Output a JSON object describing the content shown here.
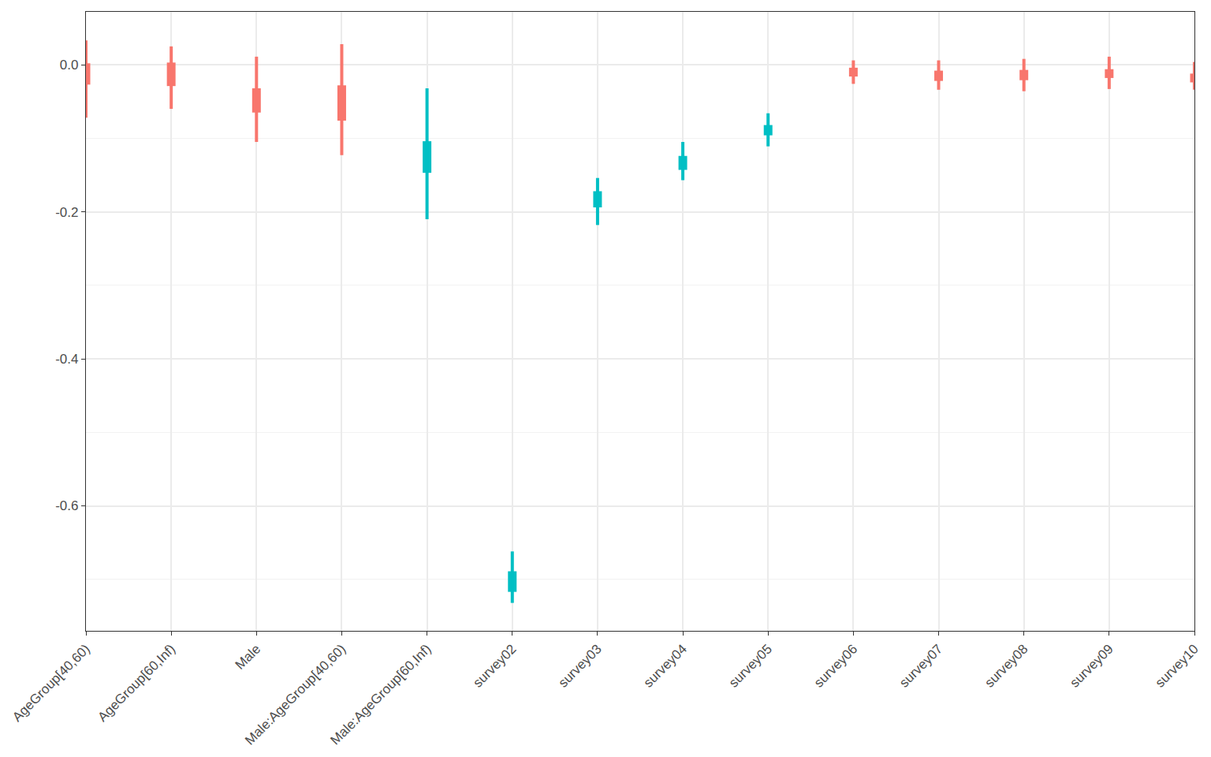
{
  "chart_data": {
    "type": "interval",
    "categories": [
      "AgeGroup[40,60)",
      "AgeGroup[60,Inf)",
      "Male",
      "Male:AgeGroup[40,60)",
      "Male:AgeGroup[60,Inf)",
      "survey02",
      "survey03",
      "survey04",
      "survey05",
      "survey06",
      "survey07",
      "survey08",
      "survey09",
      "survey10"
    ],
    "lower": [
      -0.072,
      -0.06,
      -0.105,
      -0.123,
      -0.21,
      -0.732,
      -0.218,
      -0.157,
      -0.111,
      -0.026,
      -0.034,
      -0.036,
      -0.033,
      -0.034
    ],
    "upper": [
      0.033,
      0.025,
      0.011,
      0.028,
      -0.032,
      -0.662,
      -0.154,
      -0.105,
      -0.066,
      0.006,
      0.006,
      0.008,
      0.011,
      0.004
    ],
    "inner_lower": [
      -0.027,
      -0.029,
      -0.065,
      -0.076,
      -0.147,
      -0.717,
      -0.194,
      -0.143,
      -0.096,
      -0.016,
      -0.022,
      -0.021,
      -0.018,
      -0.024
    ],
    "inner_upper": [
      0.002,
      0.003,
      -0.032,
      -0.028,
      -0.104,
      -0.689,
      -0.172,
      -0.124,
      -0.082,
      -0.004,
      -0.008,
      -0.007,
      -0.006,
      -0.012
    ],
    "colors": [
      "#F8766D",
      "#F8766D",
      "#F8766D",
      "#F8766D",
      "#00BFC4",
      "#00BFC4",
      "#00BFC4",
      "#00BFC4",
      "#00BFC4",
      "#F8766D",
      "#F8766D",
      "#F8766D",
      "#F8766D",
      "#F8766D"
    ],
    "ylim": [
      -0.77,
      0.072
    ],
    "yticks": [
      {
        "value": 0,
        "label": "0.0"
      },
      -0.2,
      -0.4,
      -0.6
    ],
    "grid": true
  }
}
